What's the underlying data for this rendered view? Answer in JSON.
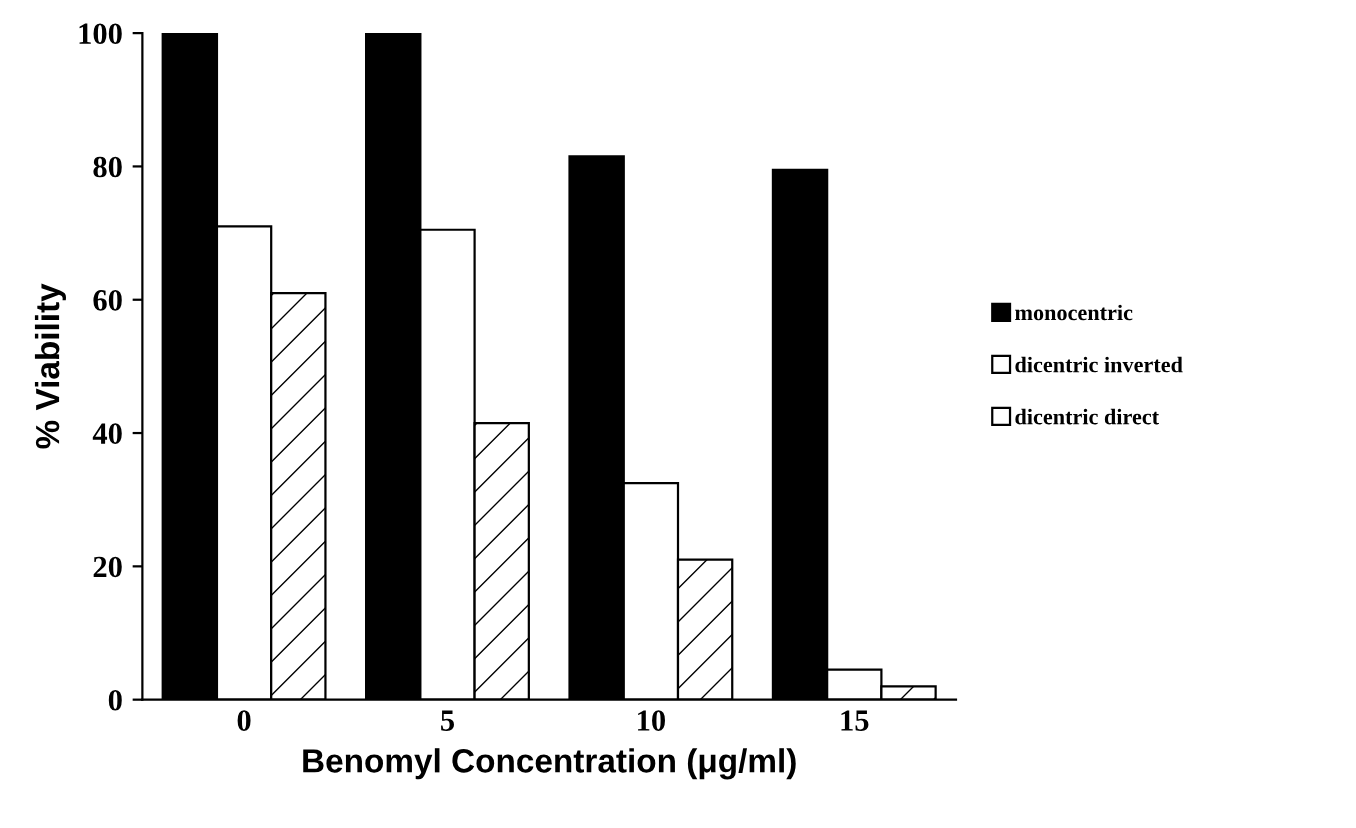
{
  "chart_data": {
    "type": "bar",
    "xlabel": "Benomyl Concentration (μg/ml)",
    "ylabel": "% Viability",
    "categories": [
      "0",
      "5",
      "10",
      "15"
    ],
    "series": [
      {
        "name": "monocentric",
        "color": "#000000",
        "values": [
          100,
          100,
          81.5,
          79.5
        ]
      },
      {
        "name": "dicentric inverted",
        "color": "#ffffff",
        "values": [
          71,
          70.5,
          32.5,
          4.5
        ]
      },
      {
        "name": "dicentric direct",
        "color": "#ffffff",
        "values": [
          61,
          41.5,
          21,
          2
        ]
      }
    ],
    "ylim": [
      0,
      100
    ],
    "yticks": [
      0,
      20,
      40,
      60,
      80,
      100
    ],
    "grid": false,
    "legend": "right"
  }
}
